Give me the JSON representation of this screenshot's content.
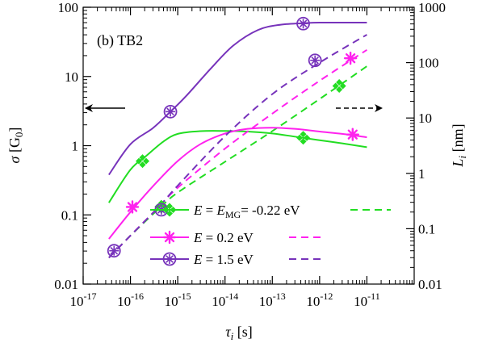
{
  "chart_data": {
    "type": "line",
    "panel_label": "(b) TB2",
    "x_axis": {
      "title_symbol": "τ",
      "title_sub": "i",
      "title_unit": " [s]",
      "scale": "log",
      "range": [
        1e-17,
        1e-10
      ],
      "ticks": [
        {
          "value": 1e-17,
          "base": "10",
          "exp": "-17"
        },
        {
          "value": 1e-16,
          "base": "10",
          "exp": "-16"
        },
        {
          "value": 1e-15,
          "base": "10",
          "exp": "-15"
        },
        {
          "value": 1e-14,
          "base": "10",
          "exp": "-14"
        },
        {
          "value": 1e-13,
          "base": "10",
          "exp": "-13"
        },
        {
          "value": 1e-12,
          "base": "10",
          "exp": "-12"
        },
        {
          "value": 1e-11,
          "base": "10",
          "exp": "-11"
        }
      ]
    },
    "y_left": {
      "title_symbol": "σ",
      "title_unit": " [G",
      "title_unit_sub": "0",
      "title_unit_end": "]",
      "scale": "log",
      "range": [
        0.01,
        100
      ],
      "ticks": [
        {
          "value": 0.01,
          "label": "0.01"
        },
        {
          "value": 0.1,
          "label": "0.1"
        },
        {
          "value": 1,
          "label": "1"
        },
        {
          "value": 10,
          "label": "10"
        },
        {
          "value": 100,
          "label": "100"
        }
      ]
    },
    "y_right": {
      "title_symbol": "L",
      "title_sub": "i",
      "title_unit": " [nm]",
      "scale": "log",
      "range": [
        0.01,
        1000
      ],
      "ticks": [
        {
          "value": 0.01,
          "label": "0.01"
        },
        {
          "value": 0.1,
          "label": "0.1"
        },
        {
          "value": 1,
          "label": "1"
        },
        {
          "value": 10,
          "label": "10"
        },
        {
          "value": 100,
          "label": "100"
        },
        {
          "value": 1000,
          "label": "1000"
        }
      ]
    },
    "series": [
      {
        "name": "E = E_MG = -0.22 eV",
        "color": "#22dd22",
        "marker": "diamond-cross",
        "sigma": [
          [
            3.5e-17,
            0.15
          ],
          [
            1e-16,
            0.45
          ],
          [
            2.2e-16,
            0.72
          ],
          [
            5e-16,
            1.15
          ],
          [
            1e-15,
            1.48
          ],
          [
            3e-15,
            1.62
          ],
          [
            1e-14,
            1.63
          ],
          [
            3e-14,
            1.6
          ],
          [
            1e-13,
            1.5
          ],
          [
            3e-13,
            1.35
          ],
          [
            1e-12,
            1.2
          ],
          [
            3e-12,
            1.08
          ],
          [
            1e-11,
            0.95
          ]
        ],
        "sigma_markers": [
          [
            1.8e-16,
            0.6
          ],
          [
            4.5e-13,
            1.3
          ]
        ],
        "length": [
          [
            3.5e-17,
            0.03
          ],
          [
            1e-16,
            0.075
          ],
          [
            4e-16,
            0.23
          ],
          [
            1e-15,
            0.45
          ],
          [
            1e-14,
            1.62
          ],
          [
            1e-13,
            5.8
          ],
          [
            1e-12,
            22
          ],
          [
            1e-11,
            86
          ]
        ],
        "length_markers": [
          [
            4.5e-16,
            0.25
          ],
          [
            2.6e-12,
            38
          ]
        ]
      },
      {
        "name": "E = 0.2 eV",
        "color": "#ff22ee",
        "marker": "asterisk",
        "sigma": [
          [
            3.5e-17,
            0.045
          ],
          [
            1e-16,
            0.11
          ],
          [
            3e-16,
            0.26
          ],
          [
            1e-15,
            0.6
          ],
          [
            3e-15,
            1.05
          ],
          [
            1e-14,
            1.5
          ],
          [
            3e-14,
            1.75
          ],
          [
            1e-13,
            1.82
          ],
          [
            3e-13,
            1.75
          ],
          [
            1e-12,
            1.6
          ],
          [
            3e-12,
            1.48
          ],
          [
            1e-11,
            1.32
          ]
        ],
        "sigma_markers": [
          [
            1.1e-16,
            0.13
          ],
          [
            5e-12,
            1.45
          ]
        ],
        "length": [
          [
            3.5e-17,
            0.03
          ],
          [
            1e-16,
            0.075
          ],
          [
            4e-16,
            0.25
          ],
          [
            1e-15,
            0.55
          ],
          [
            1e-14,
            2.8
          ],
          [
            1e-13,
            12
          ],
          [
            1e-12,
            47
          ],
          [
            1e-11,
            170
          ]
        ],
        "length_markers": [
          [
            4.5e-12,
            120
          ]
        ]
      },
      {
        "name": "E = 1.5 eV",
        "color": "#7733bb",
        "marker": "circle-asterisk",
        "sigma": [
          [
            3.5e-17,
            0.38
          ],
          [
            1e-16,
            1.05
          ],
          [
            3e-16,
            1.8
          ],
          [
            7e-16,
            3.1
          ],
          [
            1.5e-15,
            5.2
          ],
          [
            5e-15,
            13
          ],
          [
            1.5e-14,
            28
          ],
          [
            5e-14,
            47
          ],
          [
            1.5e-13,
            56
          ],
          [
            5e-13,
            59
          ],
          [
            1e-12,
            60
          ],
          [
            1e-11,
            60
          ]
        ],
        "sigma_markers": [
          [
            7e-16,
            3.1
          ],
          [
            4.5e-13,
            58
          ]
        ],
        "length": [
          [
            3.5e-17,
            0.03
          ],
          [
            1e-16,
            0.075
          ],
          [
            4e-16,
            0.25
          ],
          [
            1e-15,
            0.6
          ],
          [
            1e-14,
            4.7
          ],
          [
            1e-13,
            27
          ],
          [
            1e-12,
            100
          ],
          [
            1e-11,
            320
          ]
        ],
        "length_markers": [
          [
            4.5e-17,
            0.04
          ],
          [
            4.5e-16,
            0.22
          ],
          [
            8e-13,
            110
          ]
        ]
      }
    ],
    "legend": {
      "placement": "center-right",
      "entries": [
        {
          "pre": "E",
          "mid": " = ",
          "pre2": "E",
          "sub": "MG",
          "post": "= -0.22 eV"
        },
        {
          "pre": "E",
          "mid": " = 0.2 eV"
        },
        {
          "pre": "E",
          "mid": " = 1.5 eV"
        }
      ]
    },
    "arrows": {
      "left": "solid arrow pointing to left axis",
      "right": "dashed arrow pointing to right axis"
    }
  }
}
